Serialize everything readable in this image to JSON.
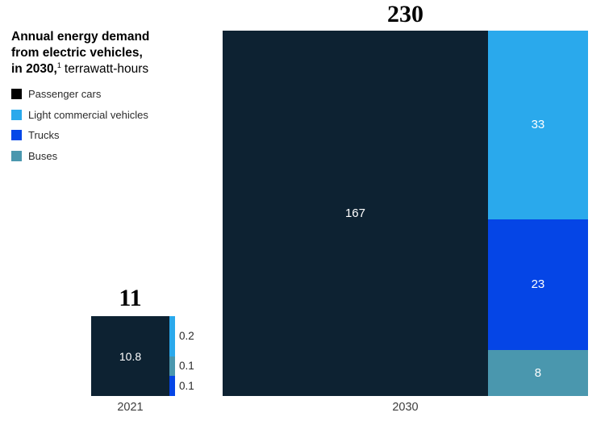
{
  "header": {
    "line1": "Annual energy demand",
    "line2": "from electric vehicles,",
    "line3_bold": "in 2030,",
    "footnote_marker": "1",
    "line3_regular": "terrawatt-hours"
  },
  "legend": {
    "items": [
      {
        "label": "Passenger cars",
        "color": "#000000"
      },
      {
        "label": "Light commercial vehicles",
        "color": "#2AA9EC"
      },
      {
        "label": "Trucks",
        "color": "#0547E8"
      },
      {
        "label": "Buses",
        "color": "#4A97AE"
      }
    ]
  },
  "chart_data": {
    "type": "mekko-stacked-bar",
    "title": "Annual energy demand from electric vehicles, in 2030, terrawatt-hours",
    "unit": "terrawatt-hours",
    "categories": [
      "2021",
      "2030"
    ],
    "legend": [
      "Passenger cars",
      "Light commercial vehicles",
      "Trucks",
      "Buses"
    ],
    "series_colors": {
      "Passenger cars": "#0D2232",
      "Light commercial vehicles": "#2AA9EC",
      "Trucks": "#0545E6",
      "Buses": "#4A97AE"
    },
    "bars": [
      {
        "category": "2021",
        "total": 11,
        "total_label": "11",
        "main_segment": {
          "series": "Passenger cars",
          "value": 10.8,
          "label": "10.8"
        },
        "side_segments": [
          {
            "series": "Light commercial vehicles",
            "value": 0.2,
            "label": "0.2"
          },
          {
            "series": "Buses",
            "value": 0.1,
            "label": "0.1"
          },
          {
            "series": "Trucks",
            "value": 0.1,
            "label": "0.1"
          }
        ]
      },
      {
        "category": "2030",
        "total": 230,
        "total_label": "230",
        "main_segment": {
          "series": "Passenger cars",
          "value": 167,
          "label": "167"
        },
        "side_segments": [
          {
            "series": "Light commercial vehicles",
            "value": 33,
            "label": "33"
          },
          {
            "series": "Trucks",
            "value": 23,
            "label": "23"
          },
          {
            "series": "Buses",
            "value": 8,
            "label": "8"
          }
        ]
      }
    ]
  }
}
